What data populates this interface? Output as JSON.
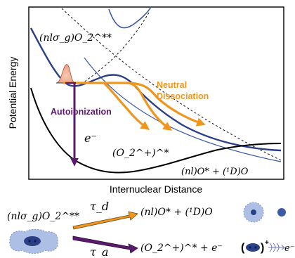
{
  "plot": {
    "ylabel": "Potential Energy",
    "xlabel": "Internuclear Distance",
    "label_superexcited": "(nlσ_g)O_2^**",
    "label_neutral_line1": "Neutral",
    "label_neutral_line2": "Dissociation",
    "label_autoionization": "Autoionization",
    "label_electron": "e⁻",
    "label_ion": "(O_2^+)^*",
    "label_limit": "(nl)O* + (¹D)O"
  },
  "scheme": {
    "reactant": "(nlσ_g)O_2^**",
    "tau_d": "τ_d",
    "tau_a": "τ_a",
    "product_neutral": "(nl)O* + (¹D)O",
    "product_ion": "(O_2^+)^* + e⁻",
    "ion_symbol": "+",
    "electron_symbol": "e⁻"
  },
  "colors": {
    "blue": "#3e5aa6",
    "dark_blue": "#2a3f86",
    "orange": "#f0961e",
    "purple": "#5b1a6e",
    "light_blue": "#aebfe6"
  }
}
